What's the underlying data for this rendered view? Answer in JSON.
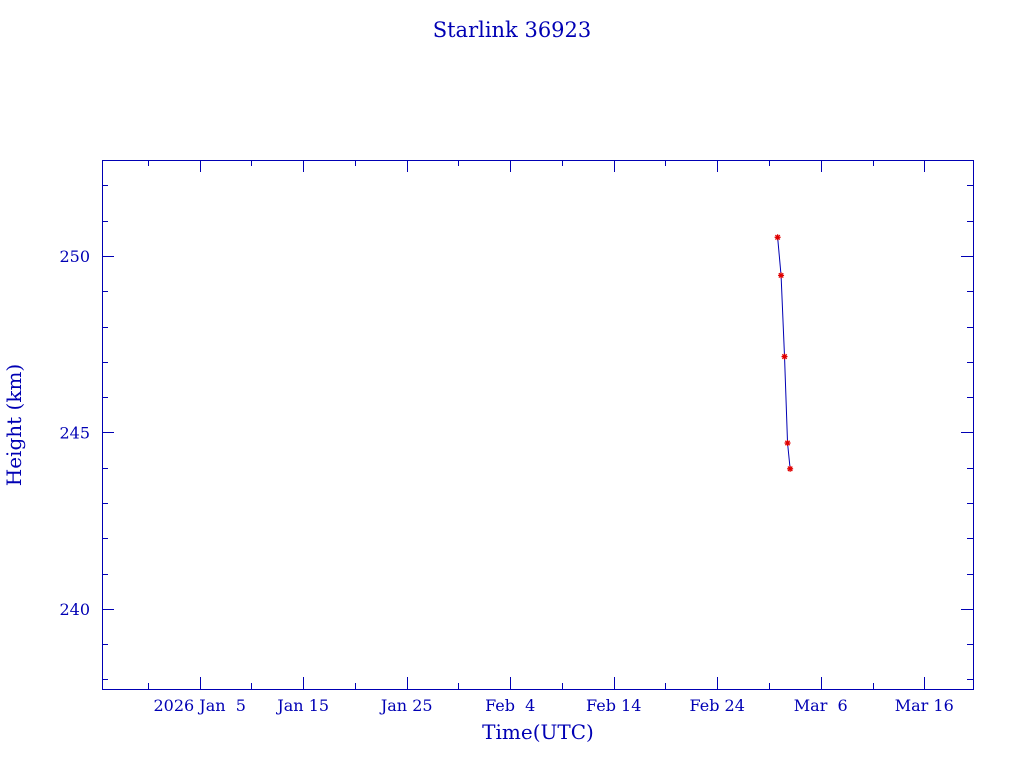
{
  "chart_data": {
    "type": "line",
    "title": "Starlink 36923",
    "xlabel": "Time(UTC)",
    "ylabel": "Height (km)",
    "xlim": [
      "2025-12-26T13:30",
      "2026-03-20T17:00"
    ],
    "ylim": [
      237.73,
      252.72
    ],
    "x_ticks": [
      {
        "date": "2026-01-05",
        "label": "2026 Jan  5"
      },
      {
        "date": "2026-01-15",
        "label": "Jan 15"
      },
      {
        "date": "2026-01-25",
        "label": "Jan 25"
      },
      {
        "date": "2026-02-04",
        "label": "Feb  4"
      },
      {
        "date": "2026-02-14",
        "label": "Feb 14"
      },
      {
        "date": "2026-02-24",
        "label": "Feb 24"
      },
      {
        "date": "2026-03-06",
        "label": "Mar  6"
      },
      {
        "date": "2026-03-16",
        "label": "Mar 16"
      }
    ],
    "y_ticks": [
      240,
      245,
      250
    ],
    "grid": false,
    "colors": {
      "axis": "#0000b4",
      "line": "#0000b4",
      "marker": "#e00000"
    },
    "series": [
      {
        "x": [
          "2026-03-01T20:00",
          "2026-03-02T04:00",
          "2026-03-02T12:00",
          "2026-03-02T19:00",
          "2026-03-03T01:00"
        ],
        "y": [
          250.53,
          249.45,
          247.15,
          244.7,
          243.97
        ]
      }
    ]
  }
}
